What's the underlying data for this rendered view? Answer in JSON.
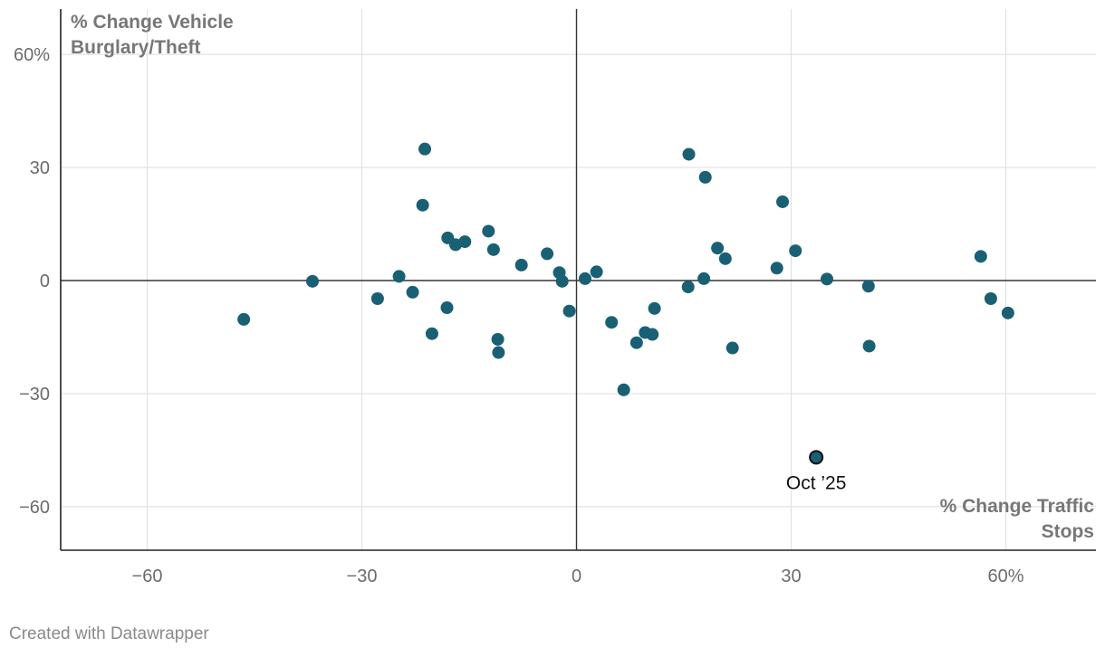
{
  "chart_data": {
    "type": "scatter",
    "title": "",
    "xlabel_lines": [
      "% Change Traffic",
      "Stops"
    ],
    "ylabel_lines": [
      "% Change Vehicle",
      "Burglary/Theft"
    ],
    "xlim": [
      -72,
      72
    ],
    "ylim": [
      -72,
      72
    ],
    "x_ticks": [
      -60,
      -30,
      0,
      30,
      60
    ],
    "y_ticks": [
      -60,
      -30,
      0,
      30,
      60
    ],
    "x_tick_labels": [
      "−60",
      "−30",
      "0",
      "30",
      "60%"
    ],
    "y_tick_labels": [
      "−60",
      "−30",
      "0",
      "30",
      "60%"
    ],
    "grid": true,
    "colors": {
      "point": "#1a6074",
      "highlight_point": "#1a6074",
      "highlight_outline": "#111111",
      "grid": "#e2e2e2",
      "zero_line": "#333333"
    },
    "points": [
      {
        "x": -46.5,
        "y": -10.3
      },
      {
        "x": -36.9,
        "y": -0.2
      },
      {
        "x": -27.8,
        "y": -4.8
      },
      {
        "x": -24.8,
        "y": 1.1
      },
      {
        "x": -22.9,
        "y": -3.1
      },
      {
        "x": -21.2,
        "y": 34.9
      },
      {
        "x": -21.5,
        "y": 20.0
      },
      {
        "x": -20.2,
        "y": -14.1
      },
      {
        "x": -18.0,
        "y": 11.3
      },
      {
        "x": -18.1,
        "y": -7.2
      },
      {
        "x": -16.9,
        "y": 9.5
      },
      {
        "x": -15.6,
        "y": 10.3
      },
      {
        "x": -12.3,
        "y": 13.1
      },
      {
        "x": -11.6,
        "y": 8.2
      },
      {
        "x": -11.0,
        "y": -15.6
      },
      {
        "x": -10.9,
        "y": -19.1
      },
      {
        "x": -7.7,
        "y": 4.1
      },
      {
        "x": -4.1,
        "y": 7.1
      },
      {
        "x": -2.4,
        "y": 2.1
      },
      {
        "x": -2.0,
        "y": -0.2
      },
      {
        "x": -1.0,
        "y": -8.1
      },
      {
        "x": 1.2,
        "y": 0.5
      },
      {
        "x": 2.8,
        "y": 2.3
      },
      {
        "x": 4.9,
        "y": -11.1
      },
      {
        "x": 6.6,
        "y": -29.0
      },
      {
        "x": 8.4,
        "y": -16.5
      },
      {
        "x": 9.6,
        "y": -13.8
      },
      {
        "x": 10.6,
        "y": -14.3
      },
      {
        "x": 10.9,
        "y": -7.4
      },
      {
        "x": 15.6,
        "y": -1.7
      },
      {
        "x": 15.7,
        "y": 33.5
      },
      {
        "x": 17.8,
        "y": 0.5
      },
      {
        "x": 18.0,
        "y": 27.4
      },
      {
        "x": 19.7,
        "y": 8.6
      },
      {
        "x": 20.8,
        "y": 5.8
      },
      {
        "x": 21.8,
        "y": -17.9
      },
      {
        "x": 28.0,
        "y": 3.3
      },
      {
        "x": 28.8,
        "y": 20.9
      },
      {
        "x": 30.6,
        "y": 7.9
      },
      {
        "x": 35.0,
        "y": 0.4
      },
      {
        "x": 40.8,
        "y": -1.5
      },
      {
        "x": 40.9,
        "y": -17.4
      },
      {
        "x": 56.5,
        "y": 6.4
      },
      {
        "x": 57.9,
        "y": -4.8
      },
      {
        "x": 60.3,
        "y": -8.6
      }
    ],
    "highlight": {
      "x": 33.5,
      "y": -46.9,
      "label": "Oct ’25"
    }
  },
  "footer": {
    "credit": "Created with Datawrapper"
  }
}
